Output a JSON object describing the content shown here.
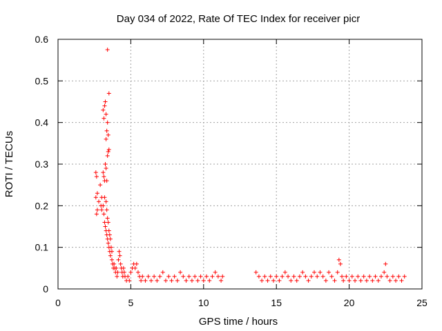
{
  "chart_data": {
    "type": "scatter",
    "title": "Day 034 of 2022, Rate Of TEC Index for receiver picr",
    "xlabel": "GPS time / hours",
    "ylabel": "ROTI / TECUs",
    "xlim": [
      0,
      25
    ],
    "ylim": [
      0,
      0.6
    ],
    "x_ticks": [
      0,
      5,
      10,
      15,
      20,
      25
    ],
    "y_ticks": [
      0,
      0.1,
      0.2,
      0.3,
      0.4,
      0.5,
      0.6
    ],
    "x_tick_labels": [
      "0",
      "5",
      "10",
      "15",
      "20",
      "25"
    ],
    "y_tick_labels": [
      "0",
      "0.1",
      "0.2",
      "0.3",
      "0.4",
      "0.5",
      "0.6"
    ],
    "grid": true,
    "marker": "+",
    "series": [
      {
        "color": "#ff0000",
        "points": [
          [
            2.6,
            0.28
          ],
          [
            2.65,
            0.27
          ],
          [
            2.6,
            0.22
          ],
          [
            2.7,
            0.23
          ],
          [
            2.65,
            0.18
          ],
          [
            2.7,
            0.19
          ],
          [
            2.8,
            0.21
          ],
          [
            2.9,
            0.25
          ],
          [
            2.95,
            0.2
          ],
          [
            3.0,
            0.19
          ],
          [
            3.0,
            0.22
          ],
          [
            3.1,
            0.43
          ],
          [
            3.15,
            0.41
          ],
          [
            3.2,
            0.44
          ],
          [
            3.25,
            0.45
          ],
          [
            3.3,
            0.42
          ],
          [
            3.1,
            0.28
          ],
          [
            3.15,
            0.27
          ],
          [
            3.2,
            0.26
          ],
          [
            3.25,
            0.3
          ],
          [
            3.3,
            0.29
          ],
          [
            3.3,
            0.36
          ],
          [
            3.35,
            0.38
          ],
          [
            3.4,
            0.4
          ],
          [
            3.45,
            0.37
          ],
          [
            3.4,
            0.575
          ],
          [
            3.5,
            0.47
          ],
          [
            3.45,
            0.33
          ],
          [
            3.5,
            0.335
          ],
          [
            3.4,
            0.32
          ],
          [
            3.35,
            0.26
          ],
          [
            3.1,
            0.2
          ],
          [
            3.15,
            0.18
          ],
          [
            3.2,
            0.16
          ],
          [
            3.25,
            0.15
          ],
          [
            3.3,
            0.14
          ],
          [
            3.35,
            0.13
          ],
          [
            3.4,
            0.12
          ],
          [
            3.45,
            0.11
          ],
          [
            3.5,
            0.1
          ],
          [
            3.55,
            0.09
          ],
          [
            3.2,
            0.22
          ],
          [
            3.3,
            0.21
          ],
          [
            3.35,
            0.19
          ],
          [
            3.4,
            0.17
          ],
          [
            3.45,
            0.16
          ],
          [
            3.5,
            0.14
          ],
          [
            3.55,
            0.13
          ],
          [
            3.6,
            0.12
          ],
          [
            3.65,
            0.1
          ],
          [
            3.7,
            0.09
          ],
          [
            3.6,
            0.08
          ],
          [
            3.7,
            0.07
          ],
          [
            3.75,
            0.06
          ],
          [
            3.8,
            0.05
          ],
          [
            3.85,
            0.06
          ],
          [
            3.9,
            0.05
          ],
          [
            3.95,
            0.04
          ],
          [
            4.0,
            0.05
          ],
          [
            4.05,
            0.03
          ],
          [
            4.1,
            0.04
          ],
          [
            4.15,
            0.07
          ],
          [
            4.2,
            0.09
          ],
          [
            4.25,
            0.08
          ],
          [
            4.3,
            0.06
          ],
          [
            4.35,
            0.05
          ],
          [
            4.4,
            0.04
          ],
          [
            4.45,
            0.03
          ],
          [
            4.5,
            0.05
          ],
          [
            4.55,
            0.04
          ],
          [
            4.6,
            0.03
          ],
          [
            4.7,
            0.02
          ],
          [
            4.8,
            0.03
          ],
          [
            4.9,
            0.02
          ],
          [
            5.0,
            0.04
          ],
          [
            5.1,
            0.05
          ],
          [
            5.2,
            0.06
          ],
          [
            5.3,
            0.05
          ],
          [
            5.4,
            0.06
          ],
          [
            5.5,
            0.04
          ],
          [
            5.6,
            0.03
          ],
          [
            5.7,
            0.02
          ],
          [
            5.8,
            0.03
          ],
          [
            6.0,
            0.02
          ],
          [
            6.2,
            0.03
          ],
          [
            6.4,
            0.02
          ],
          [
            6.6,
            0.03
          ],
          [
            6.8,
            0.02
          ],
          [
            7.0,
            0.03
          ],
          [
            7.2,
            0.04
          ],
          [
            7.4,
            0.02
          ],
          [
            7.6,
            0.03
          ],
          [
            7.8,
            0.02
          ],
          [
            8.0,
            0.03
          ],
          [
            8.2,
            0.02
          ],
          [
            8.4,
            0.04
          ],
          [
            8.6,
            0.03
          ],
          [
            8.8,
            0.02
          ],
          [
            9.0,
            0.03
          ],
          [
            9.2,
            0.02
          ],
          [
            9.4,
            0.03
          ],
          [
            9.6,
            0.02
          ],
          [
            9.8,
            0.03
          ],
          [
            10.0,
            0.02
          ],
          [
            10.2,
            0.03
          ],
          [
            10.4,
            0.02
          ],
          [
            10.6,
            0.03
          ],
          [
            10.8,
            0.04
          ],
          [
            11.0,
            0.03
          ],
          [
            11.2,
            0.02
          ],
          [
            11.3,
            0.03
          ],
          [
            13.6,
            0.04
          ],
          [
            13.8,
            0.03
          ],
          [
            14.0,
            0.02
          ],
          [
            14.2,
            0.03
          ],
          [
            14.4,
            0.02
          ],
          [
            14.6,
            0.03
          ],
          [
            14.8,
            0.02
          ],
          [
            15.0,
            0.03
          ],
          [
            15.2,
            0.02
          ],
          [
            15.4,
            0.03
          ],
          [
            15.6,
            0.04
          ],
          [
            15.8,
            0.03
          ],
          [
            16.0,
            0.02
          ],
          [
            16.2,
            0.03
          ],
          [
            16.4,
            0.02
          ],
          [
            16.6,
            0.03
          ],
          [
            16.8,
            0.04
          ],
          [
            17.0,
            0.03
          ],
          [
            17.2,
            0.02
          ],
          [
            17.4,
            0.03
          ],
          [
            17.6,
            0.04
          ],
          [
            17.8,
            0.03
          ],
          [
            18.0,
            0.04
          ],
          [
            18.2,
            0.03
          ],
          [
            18.4,
            0.02
          ],
          [
            18.6,
            0.04
          ],
          [
            18.8,
            0.03
          ],
          [
            19.0,
            0.02
          ],
          [
            19.2,
            0.04
          ],
          [
            19.3,
            0.07
          ],
          [
            19.4,
            0.06
          ],
          [
            19.5,
            0.03
          ],
          [
            19.6,
            0.02
          ],
          [
            19.8,
            0.03
          ],
          [
            20.0,
            0.02
          ],
          [
            20.2,
            0.03
          ],
          [
            20.4,
            0.02
          ],
          [
            20.6,
            0.03
          ],
          [
            20.8,
            0.02
          ],
          [
            21.0,
            0.03
          ],
          [
            21.2,
            0.02
          ],
          [
            21.4,
            0.03
          ],
          [
            21.6,
            0.02
          ],
          [
            21.8,
            0.03
          ],
          [
            22.0,
            0.02
          ],
          [
            22.2,
            0.03
          ],
          [
            22.4,
            0.04
          ],
          [
            22.5,
            0.06
          ],
          [
            22.6,
            0.03
          ],
          [
            22.8,
            0.02
          ],
          [
            23.0,
            0.03
          ],
          [
            23.2,
            0.02
          ],
          [
            23.4,
            0.03
          ],
          [
            23.6,
            0.02
          ],
          [
            23.8,
            0.03
          ]
        ]
      }
    ]
  }
}
